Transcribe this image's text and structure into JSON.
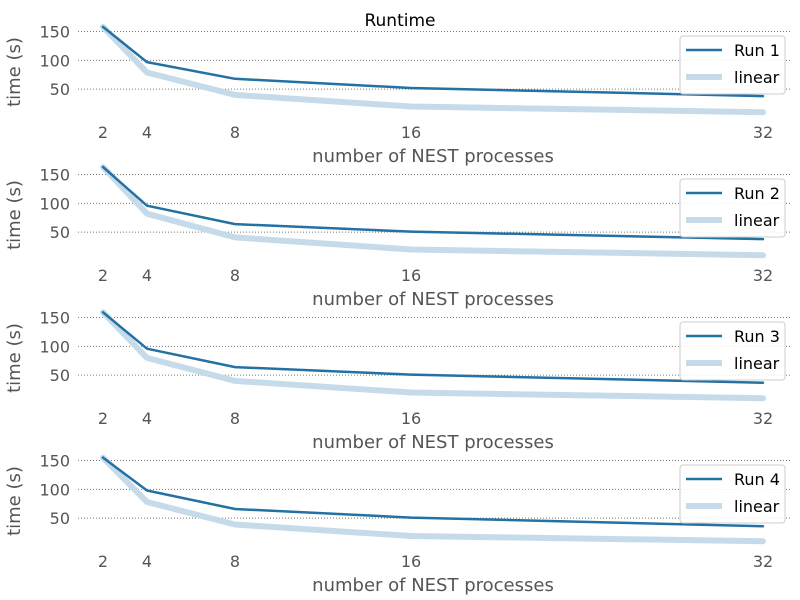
{
  "colors": {
    "run": "#2471a3",
    "linear": "#c6dbea",
    "grid": "#777777",
    "text": "#555555"
  },
  "chart_data": [
    {
      "type": "line",
      "title": "Runtime",
      "xlabel": "number of NEST processes",
      "ylabel": "time (s)",
      "x": [
        2,
        4,
        8,
        16,
        32
      ],
      "xticks": [
        "2",
        "4",
        "8",
        "16",
        "32"
      ],
      "yticks": [
        "50",
        "100",
        "150"
      ],
      "ylim": [
        0,
        170
      ],
      "grid": true,
      "legend_position": "right",
      "series": [
        {
          "name": "Run 1",
          "values": [
            158,
            97,
            68,
            52,
            38
          ]
        },
        {
          "name": "linear",
          "values": [
            158,
            79,
            40,
            20,
            10
          ]
        }
      ]
    },
    {
      "type": "line",
      "title": "",
      "xlabel": "number of NEST processes",
      "ylabel": "time (s)",
      "x": [
        2,
        4,
        8,
        16,
        32
      ],
      "xticks": [
        "2",
        "4",
        "8",
        "16",
        "32"
      ],
      "yticks": [
        "50",
        "100",
        "150"
      ],
      "ylim": [
        0,
        170
      ],
      "grid": true,
      "legend_position": "right",
      "series": [
        {
          "name": "Run 2",
          "values": [
            163,
            96,
            64,
            51,
            38
          ]
        },
        {
          "name": "linear",
          "values": [
            163,
            82,
            41,
            20,
            10
          ]
        }
      ]
    },
    {
      "type": "line",
      "title": "",
      "xlabel": "number of NEST processes",
      "ylabel": "time (s)",
      "x": [
        2,
        4,
        8,
        16,
        32
      ],
      "xticks": [
        "2",
        "4",
        "8",
        "16",
        "32"
      ],
      "yticks": [
        "50",
        "100",
        "150"
      ],
      "ylim": [
        0,
        170
      ],
      "grid": true,
      "legend_position": "right",
      "series": [
        {
          "name": "Run 3",
          "values": [
            159,
            96,
            64,
            51,
            37
          ]
        },
        {
          "name": "linear",
          "values": [
            159,
            80,
            40,
            20,
            10
          ]
        }
      ]
    },
    {
      "type": "line",
      "title": "",
      "xlabel": "number of NEST processes",
      "ylabel": "time (s)",
      "x": [
        2,
        4,
        8,
        16,
        32
      ],
      "xticks": [
        "2",
        "4",
        "8",
        "16",
        "32"
      ],
      "yticks": [
        "50",
        "100",
        "150"
      ],
      "ylim": [
        0,
        170
      ],
      "grid": true,
      "legend_position": "right",
      "series": [
        {
          "name": "Run 4",
          "values": [
            155,
            98,
            66,
            51,
            36
          ]
        },
        {
          "name": "linear",
          "values": [
            155,
            78,
            39,
            19,
            10
          ]
        }
      ]
    }
  ]
}
